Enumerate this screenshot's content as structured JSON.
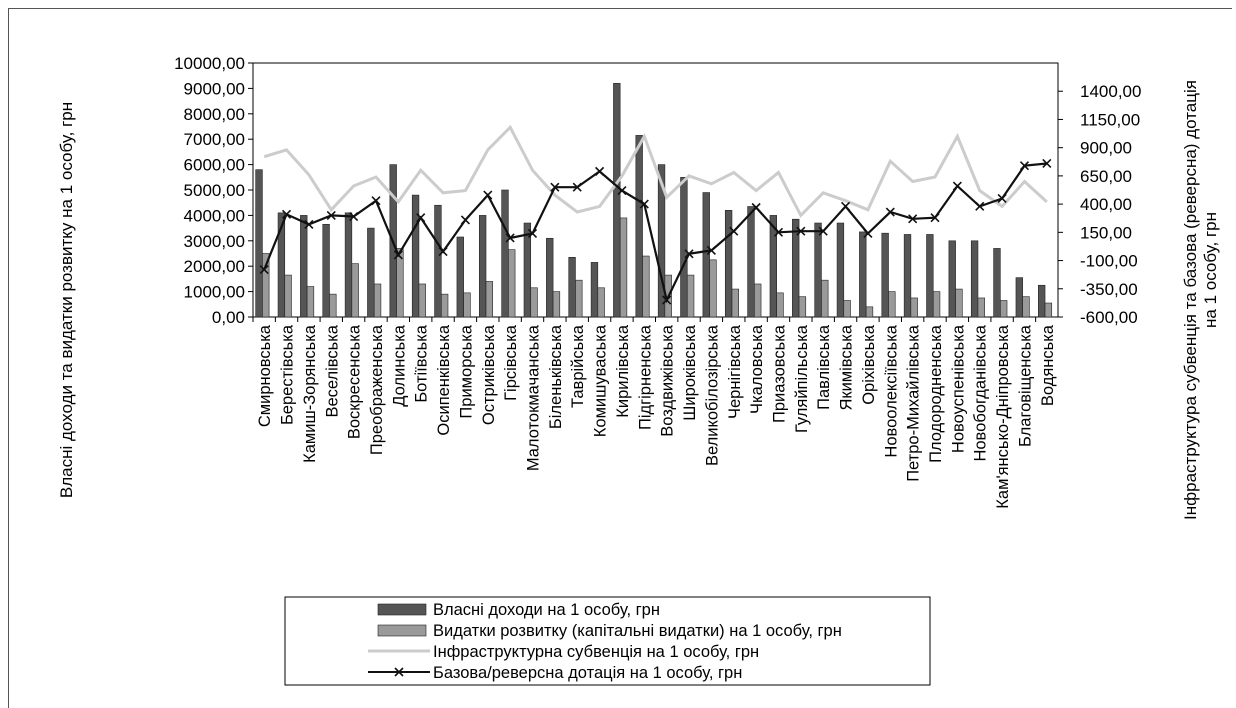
{
  "chart_data": {
    "type": "bar",
    "categories": [
      "Смирновська",
      "Берестівська",
      "Камиш-Зорянська",
      "Веселівська",
      "Воскресенська",
      "Преображенська",
      "Долинська",
      "Ботіївська",
      "Осипенківська",
      "Приморська",
      "Остриківська",
      "Гірсівська",
      "Малотокмачанська",
      "Біленьківська",
      "Таврійська",
      "Комишуваська",
      "Кирилівська",
      "Підгірненська",
      "Воздвижівська",
      "Широківська",
      "Великобілозірська",
      "Чернігівська",
      "Чкаловська",
      "Приазовська",
      "Гуляйпільська",
      "Павлівська",
      "Якимівська",
      "Оріхівська",
      "Новоолексіївська",
      "Петро-Михайлівська",
      "Плодородненська",
      "Новоуспенівська",
      "Новобогданівська",
      "Кам'янсько-Дніпровська",
      "Благовіщенська",
      "Водянська"
    ],
    "series": [
      {
        "name": "Власні доходи на 1 особу, грн",
        "axis": "left",
        "kind": "bar",
        "color": "#555555",
        "values": [
          5800,
          4100,
          4000,
          3650,
          4100,
          3500,
          6000,
          4800,
          4400,
          3150,
          4000,
          5000,
          3700,
          3100,
          2350,
          2150,
          9200,
          7150,
          6000,
          5500,
          4900,
          4200,
          4350,
          4000,
          3850,
          3700,
          3700,
          3350,
          3300,
          3250,
          3250,
          3000,
          3000,
          2700,
          1550,
          1250
        ]
      },
      {
        "name": "Видатки розвитку (капітальні видатки) на 1 особу, грн",
        "axis": "left",
        "kind": "bar",
        "color": "#9a9a9a",
        "values": [
          2500,
          1650,
          1200,
          900,
          2100,
          1300,
          2700,
          1300,
          900,
          950,
          1400,
          2650,
          1150,
          1000,
          1450,
          1150,
          3900,
          2400,
          1650,
          1650,
          2250,
          1100,
          1300,
          950,
          800,
          1450,
          650,
          400,
          1000,
          750,
          1000,
          1100,
          750,
          650,
          800,
          550
        ]
      },
      {
        "name": "Інфраструктурна субвенція на 1 особу, грн",
        "axis": "right",
        "kind": "line",
        "color": "#cccccc",
        "values": [
          820,
          880,
          660,
          350,
          560,
          640,
          420,
          700,
          500,
          520,
          880,
          1080,
          700,
          480,
          330,
          380,
          650,
          1000,
          460,
          650,
          580,
          680,
          520,
          680,
          300,
          500,
          430,
          350,
          780,
          600,
          640,
          1000,
          520,
          380,
          600,
          420
        ]
      },
      {
        "name": "Базова/реверсна дотація на 1 особу, грн",
        "axis": "right",
        "kind": "line-marker",
        "color": "#111111",
        "values": [
          -180,
          310,
          220,
          300,
          290,
          430,
          -50,
          280,
          -20,
          260,
          480,
          100,
          140,
          550,
          550,
          690,
          520,
          400,
          -450,
          -40,
          -10,
          160,
          370,
          150,
          160,
          160,
          380,
          140,
          330,
          270,
          280,
          560,
          380,
          450,
          740,
          760
        ]
      }
    ],
    "ylabel": "Власні доходи та видатки розвитку на 1 особу, грн",
    "y2label_lines": [
      "Інфраструктура субвенція та базова (реверсна) дотація",
      "на 1 особу, грн"
    ],
    "ylim": [
      0,
      10000
    ],
    "y2lim": [
      -600,
      1650
    ],
    "yticks": [
      "0,00",
      "1000,00",
      "2000,00",
      "3000,00",
      "4000,00",
      "5000,00",
      "6000,00",
      "7000,00",
      "8000,00",
      "9000,00",
      "10000,00"
    ],
    "y2ticks": [
      "-600,00",
      "-350,00",
      "-100,00",
      "150,00",
      "400,00",
      "650,00",
      "900,00",
      "1150,00",
      "1400,00"
    ],
    "legend_position": "bottom"
  }
}
